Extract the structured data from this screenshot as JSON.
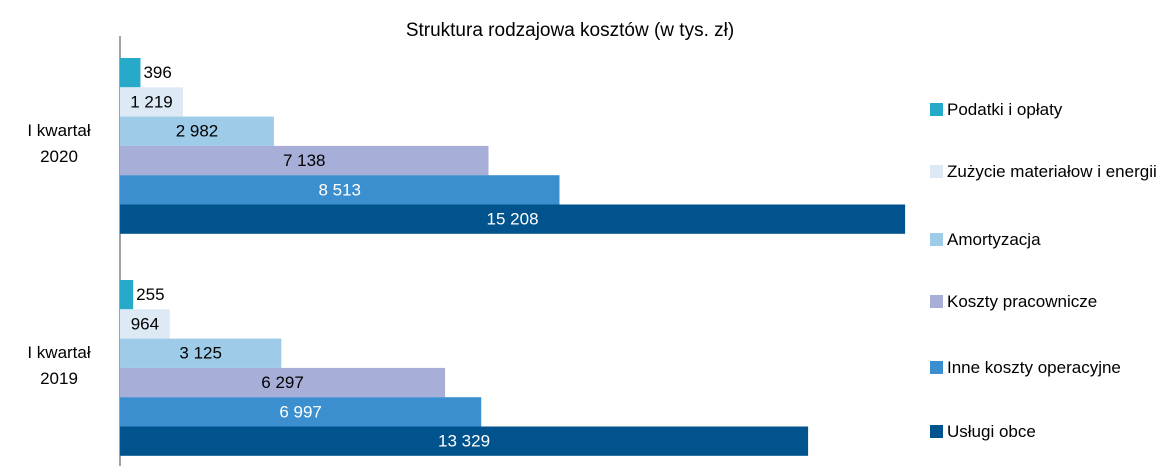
{
  "chart_data": {
    "type": "hbar",
    "title": "Struktura rodzajowa kosztów (w tys. zł)",
    "categories": [
      "I kwartał 2020",
      "I kwartał 2019"
    ],
    "xlim": [
      0,
      16000
    ],
    "series": [
      {
        "name": "Podatki i opłaty",
        "color": "#27a9c9",
        "values": [
          396,
          255
        ]
      },
      {
        "name": "Zużycie materiałow i energii",
        "color": "#dde9f5",
        "values": [
          1219,
          964
        ],
        "value_labels": [
          "1 219",
          "964"
        ]
      },
      {
        "name": "Amortyzacja",
        "color": "#9dcbe8",
        "values": [
          2982,
          3125
        ],
        "value_labels": [
          "2 982",
          "3 125"
        ]
      },
      {
        "name": "Koszty pracownicze",
        "color": "#a7aed8",
        "values": [
          7138,
          6297
        ],
        "value_labels": [
          "7 138",
          "6 297"
        ]
      },
      {
        "name": "Inne koszty operacyjne",
        "color": "#3c8fce",
        "values": [
          8513,
          6997
        ],
        "value_labels": [
          "8 513",
          "6 997"
        ]
      },
      {
        "name": "Usługi obce",
        "color": "#00538c",
        "values": [
          15208,
          13329
        ],
        "value_labels": [
          "15 208",
          "13 329"
        ]
      }
    ]
  }
}
